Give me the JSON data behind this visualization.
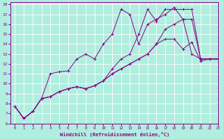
{
  "xlabel": "Windchill (Refroidissement éolien,°C)",
  "bg_color": "#b0eedf",
  "grid_color": "#ffffff",
  "line_color": "#880088",
  "xlim": [
    -0.5,
    23
  ],
  "ylim": [
    6,
    18.2
  ],
  "xticks": [
    0,
    1,
    2,
    3,
    4,
    5,
    6,
    7,
    8,
    9,
    10,
    11,
    12,
    13,
    14,
    15,
    16,
    17,
    18,
    19,
    20,
    21,
    22,
    23
  ],
  "yticks": [
    6,
    7,
    8,
    9,
    10,
    11,
    12,
    13,
    14,
    15,
    16,
    17,
    18
  ],
  "line1_x": [
    0,
    1,
    2,
    3,
    4,
    5,
    6,
    7,
    8,
    9,
    10,
    11,
    12,
    13,
    14,
    15,
    16,
    17,
    18,
    19,
    20,
    21,
    22,
    23
  ],
  "line1_y": [
    7.7,
    6.5,
    7.2,
    8.5,
    8.7,
    9.2,
    9.5,
    9.7,
    9.5,
    9.8,
    10.3,
    11.0,
    11.5,
    12.0,
    12.5,
    13.0,
    14.0,
    14.5,
    14.5,
    13.5,
    14.2,
    12.3,
    12.5,
    12.5
  ],
  "line2_x": [
    0,
    1,
    2,
    3,
    4,
    5,
    6,
    7,
    8,
    9,
    10,
    11,
    12,
    13,
    14,
    15,
    16,
    17,
    18,
    19,
    20,
    21,
    22,
    23
  ],
  "line2_y": [
    7.7,
    6.5,
    7.2,
    8.5,
    8.7,
    9.2,
    9.5,
    9.7,
    9.5,
    9.8,
    10.3,
    11.5,
    12.5,
    13.0,
    15.0,
    17.5,
    16.3,
    17.5,
    17.5,
    17.5,
    17.5,
    12.5,
    12.5,
    12.5
  ],
  "line3_x": [
    0,
    1,
    2,
    3,
    4,
    5,
    6,
    7,
    8,
    9,
    10,
    11,
    12,
    13,
    14,
    15,
    16,
    17,
    18,
    19,
    20,
    21,
    22,
    23
  ],
  "line3_y": [
    7.7,
    6.5,
    7.2,
    8.5,
    11.0,
    11.2,
    11.3,
    12.5,
    13.0,
    12.5,
    14.0,
    15.0,
    17.5,
    17.0,
    14.0,
    16.0,
    16.5,
    17.0,
    17.7,
    16.5,
    13.0,
    12.5,
    12.5,
    12.5
  ],
  "line4_x": [
    0,
    1,
    2,
    3,
    4,
    5,
    6,
    7,
    8,
    9,
    10,
    11,
    12,
    13,
    14,
    15,
    16,
    17,
    18,
    19,
    20,
    21,
    22,
    23
  ],
  "line4_y": [
    7.7,
    6.5,
    7.2,
    8.5,
    8.7,
    9.2,
    9.5,
    9.7,
    9.5,
    9.8,
    10.3,
    11.0,
    11.5,
    12.0,
    12.5,
    13.0,
    14.0,
    15.5,
    16.0,
    16.5,
    16.5,
    12.5,
    12.5,
    12.5
  ]
}
